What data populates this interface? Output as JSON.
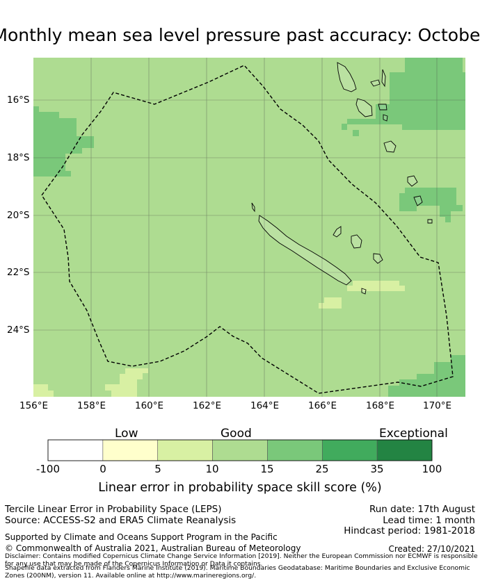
{
  "title": "Monthly mean sea level pressure past accuracy: October",
  "map": {
    "lat_labels": [
      "16°S",
      "18°S",
      "20°S",
      "22°S",
      "24°S"
    ],
    "lon_labels": [
      "156°E",
      "158°E",
      "160°E",
      "162°E",
      "164°E",
      "166°E",
      "168°E",
      "170°E"
    ],
    "colors": {
      "good_light": "#aedc91",
      "good": "#7ac87a",
      "low_light": "#d8f0a3",
      "border": "#000000"
    }
  },
  "colorbar": {
    "categories": {
      "low": "Low",
      "good": "Good",
      "exceptional": "Exceptional"
    },
    "ticks": [
      "-100",
      "0",
      "5",
      "10",
      "15",
      "25",
      "35",
      "100"
    ],
    "colors": [
      "#ffffff",
      "#ffffcc",
      "#d8f0a3",
      "#aedc91",
      "#7ac87a",
      "#41ab5d",
      "#238443"
    ],
    "label": "Linear error in probability space skill score (%)"
  },
  "info": {
    "line1": "Tercile Linear Error in Probability Space (LEPS)",
    "line2": "Source: ACCESS-S2 and ERA5 Climate Reanalysis",
    "run_date": "Run date: 17th August",
    "lead_time": "Lead time: 1 month",
    "hindcast": "Hindcast period: 1981-2018",
    "supported": "Supported by Climate and Oceans Support Program in the Pacific",
    "copyright": "© Commonwealth of Australia 2021, Australian Bureau of Meteorology",
    "created": "Created: 27/10/2021",
    "disclaimer": "Disclaimer: Contains modified Copernicus Climate Change Service Information [2019]. Neither the European Commission nor ECMWF is responsible for any use that may be made of the Copernicus Information or Data it contains.",
    "shapefile": "Shapefile data extracted from Flanders Marine Institute (2019). Maritime Boundaries Geodatabase: Maritime Boundaries and Exclusive Economic Zones (200NM), version 11. Available online at http://www.marineregions.org/."
  }
}
